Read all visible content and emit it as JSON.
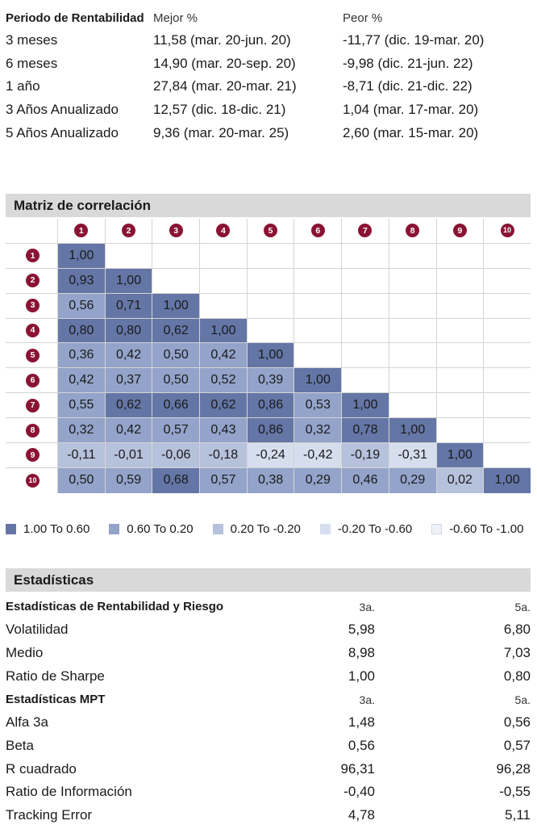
{
  "rentabilidad": {
    "headers": [
      "Periodo de Rentabilidad",
      "Mejor %",
      "Peor %"
    ],
    "rows": [
      [
        "3 meses",
        "11,58 (mar. 20-jun. 20)",
        "-11,77 (dic. 19-mar. 20)"
      ],
      [
        "6 meses",
        "14,90 (mar. 20-sep. 20)",
        "-9,98 (dic. 21-jun. 22)"
      ],
      [
        "1 año",
        "27,84 (mar. 20-mar. 21)",
        "-8,71 (dic. 21-dic. 22)"
      ],
      [
        "3 Años Anualizado",
        "12,57 (dic. 18-dic. 21)",
        "1,04 (mar. 17-mar. 20)"
      ],
      [
        "5 Años Anualizado",
        "9,36 (mar. 20-mar. 25)",
        "2,60 (mar. 15-mar. 20)"
      ]
    ]
  },
  "correlacion": {
    "title": "Matriz de correlación",
    "labels": [
      "1",
      "2",
      "3",
      "4",
      "5",
      "6",
      "7",
      "8",
      "9",
      "10"
    ],
    "rows": [
      [
        {
          "v": "1,00",
          "l": 1
        }
      ],
      [
        {
          "v": "0,93",
          "l": 1
        },
        {
          "v": "1,00",
          "l": 1
        }
      ],
      [
        {
          "v": "0,56",
          "l": 2
        },
        {
          "v": "0,71",
          "l": 1
        },
        {
          "v": "1,00",
          "l": 1
        }
      ],
      [
        {
          "v": "0,80",
          "l": 1
        },
        {
          "v": "0,80",
          "l": 1
        },
        {
          "v": "0,62",
          "l": 1
        },
        {
          "v": "1,00",
          "l": 1
        }
      ],
      [
        {
          "v": "0,36",
          "l": 2
        },
        {
          "v": "0,42",
          "l": 2
        },
        {
          "v": "0,50",
          "l": 2
        },
        {
          "v": "0,42",
          "l": 2
        },
        {
          "v": "1,00",
          "l": 1
        }
      ],
      [
        {
          "v": "0,42",
          "l": 2
        },
        {
          "v": "0,37",
          "l": 2
        },
        {
          "v": "0,50",
          "l": 2
        },
        {
          "v": "0,52",
          "l": 2
        },
        {
          "v": "0,39",
          "l": 2
        },
        {
          "v": "1,00",
          "l": 1
        }
      ],
      [
        {
          "v": "0,55",
          "l": 2
        },
        {
          "v": "0,62",
          "l": 1
        },
        {
          "v": "0,66",
          "l": 1
        },
        {
          "v": "0,62",
          "l": 1
        },
        {
          "v": "0,86",
          "l": 1
        },
        {
          "v": "0,53",
          "l": 2
        },
        {
          "v": "1,00",
          "l": 1
        }
      ],
      [
        {
          "v": "0,32",
          "l": 2
        },
        {
          "v": "0,42",
          "l": 2
        },
        {
          "v": "0,57",
          "l": 2
        },
        {
          "v": "0,43",
          "l": 2
        },
        {
          "v": "0,86",
          "l": 1
        },
        {
          "v": "0,32",
          "l": 2
        },
        {
          "v": "0,78",
          "l": 1
        },
        {
          "v": "1,00",
          "l": 1
        }
      ],
      [
        {
          "v": "-0,11",
          "l": 3
        },
        {
          "v": "-0,01",
          "l": 3
        },
        {
          "v": "-0,06",
          "l": 3
        },
        {
          "v": "-0,18",
          "l": 3
        },
        {
          "v": "-0,24",
          "l": 4
        },
        {
          "v": "-0,42",
          "l": 4
        },
        {
          "v": "-0,19",
          "l": 3
        },
        {
          "v": "-0,31",
          "l": 4
        },
        {
          "v": "1,00",
          "l": 1
        }
      ],
      [
        {
          "v": "0,50",
          "l": 2
        },
        {
          "v": "0,59",
          "l": 2
        },
        {
          "v": "0,68",
          "l": 1
        },
        {
          "v": "0,57",
          "l": 2
        },
        {
          "v": "0,38",
          "l": 2
        },
        {
          "v": "0,29",
          "l": 2
        },
        {
          "v": "0,46",
          "l": 2
        },
        {
          "v": "0,29",
          "l": 2
        },
        {
          "v": "0,02",
          "l": 3
        },
        {
          "v": "1,00",
          "l": 1
        }
      ]
    ],
    "legend": [
      {
        "label": "1.00 To 0.60",
        "color": "#6476a6"
      },
      {
        "label": "0.60 To 0.20",
        "color": "#93a3ca"
      },
      {
        "label": "0.20 To -0.20",
        "color": "#b6c1dc"
      },
      {
        "label": "-0.20 To -0.60",
        "color": "#d6deee"
      },
      {
        "label": "-0.60 To -1.00",
        "color": "#eef1f8"
      }
    ]
  },
  "estadisticas": {
    "title": "Estadísticas",
    "groups": [
      {
        "heading": "Estadísticas de Rentabilidad y Riesgo",
        "cols": [
          "3a.",
          "5a."
        ],
        "rows": [
          [
            "Volatilidad",
            "5,98",
            "6,80"
          ],
          [
            "Medio",
            "8,98",
            "7,03"
          ],
          [
            "Ratio de Sharpe",
            "1,00",
            "0,80"
          ]
        ]
      },
      {
        "heading": "Estadísticas MPT",
        "cols": [
          "3a.",
          "5a."
        ],
        "rows": [
          [
            "Alfa 3a",
            "1,48",
            "0,56"
          ],
          [
            "Beta",
            "0,56",
            "0,57"
          ],
          [
            "R cuadrado",
            "96,31",
            "96,28"
          ],
          [
            "Ratio de Información",
            "-0,40",
            "-0,55"
          ],
          [
            "Tracking Error",
            "4,78",
            "5,11"
          ]
        ]
      }
    ]
  }
}
